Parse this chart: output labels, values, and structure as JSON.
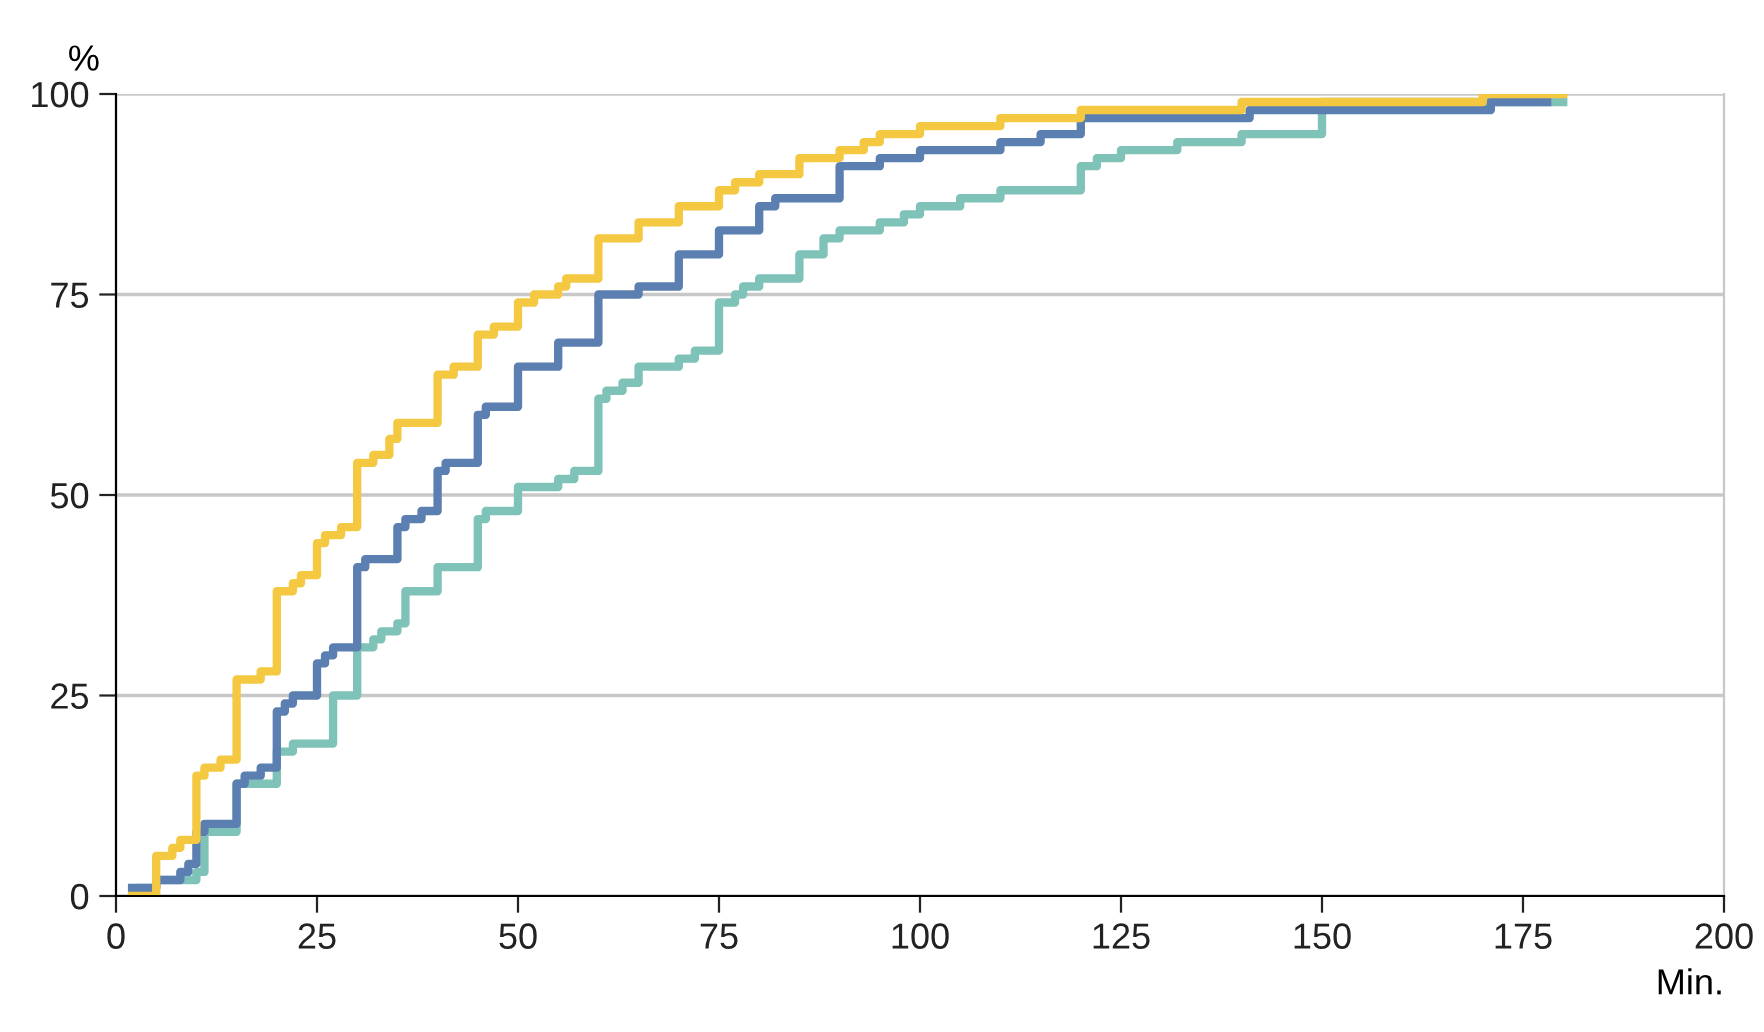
{
  "chart_data": {
    "type": "step",
    "ylabel": "%",
    "xlabel": "Min.",
    "xlim": [
      0,
      200
    ],
    "ylim": [
      0,
      100
    ],
    "xticks": [
      0,
      25,
      50,
      75,
      100,
      125,
      150,
      175,
      200
    ],
    "yticks": [
      0,
      25,
      50,
      75,
      100
    ],
    "grid": "y",
    "legend": false,
    "marker": "none",
    "line_style": "solid",
    "series": [
      {
        "color": "#7fc2b8",
        "x": [
          3,
          5,
          10,
          11,
          15,
          20,
          22,
          27,
          30,
          32,
          33,
          35,
          36,
          40,
          45,
          46,
          50,
          55,
          57,
          60,
          61,
          63,
          65,
          70,
          72,
          75,
          77,
          78,
          80,
          85,
          88,
          90,
          95,
          98,
          100,
          105,
          110,
          120,
          122,
          125,
          132,
          140,
          150,
          180
        ],
        "values": [
          1,
          2,
          3,
          8,
          14,
          18,
          19,
          25,
          31,
          32,
          33,
          34,
          38,
          41,
          47,
          48,
          51,
          52,
          53,
          62,
          63,
          64,
          66,
          67,
          68,
          74,
          75,
          76,
          77,
          80,
          82,
          83,
          84,
          85,
          86,
          87,
          88,
          91,
          92,
          93,
          94,
          95,
          99,
          99
        ]
      },
      {
        "color": "#5a7fb0",
        "x": [
          2,
          5,
          8,
          9,
          10,
          11,
          15,
          16,
          18,
          20,
          21,
          22,
          25,
          26,
          27,
          30,
          31,
          35,
          36,
          38,
          40,
          41,
          45,
          46,
          50,
          55,
          60,
          65,
          70,
          75,
          80,
          82,
          90,
          95,
          100,
          110,
          115,
          120,
          141,
          171,
          178
        ],
        "values": [
          1,
          2,
          3,
          4,
          8,
          9,
          14,
          15,
          16,
          23,
          24,
          25,
          29,
          30,
          31,
          41,
          42,
          46,
          47,
          48,
          53,
          54,
          60,
          61,
          66,
          69,
          75,
          76,
          80,
          83,
          86,
          87,
          91,
          92,
          93,
          94,
          95,
          97,
          98,
          99,
          99
        ]
      },
      {
        "color": "#f5c842",
        "x": [
          2,
          5,
          7,
          8,
          10,
          11,
          13,
          15,
          18,
          20,
          22,
          23,
          25,
          26,
          28,
          30,
          32,
          34,
          35,
          40,
          42,
          45,
          47,
          50,
          52,
          55,
          56,
          60,
          65,
          70,
          75,
          77,
          80,
          85,
          90,
          93,
          95,
          100,
          110,
          120,
          140,
          170,
          180
        ],
        "values": [
          0,
          5,
          6,
          7,
          15,
          16,
          17,
          27,
          28,
          38,
          39,
          40,
          44,
          45,
          46,
          54,
          55,
          57,
          59,
          65,
          66,
          70,
          71,
          74,
          75,
          76,
          77,
          82,
          84,
          86,
          88,
          89,
          90,
          92,
          93,
          94,
          95,
          96,
          97,
          98,
          99,
          100,
          100
        ]
      }
    ]
  }
}
